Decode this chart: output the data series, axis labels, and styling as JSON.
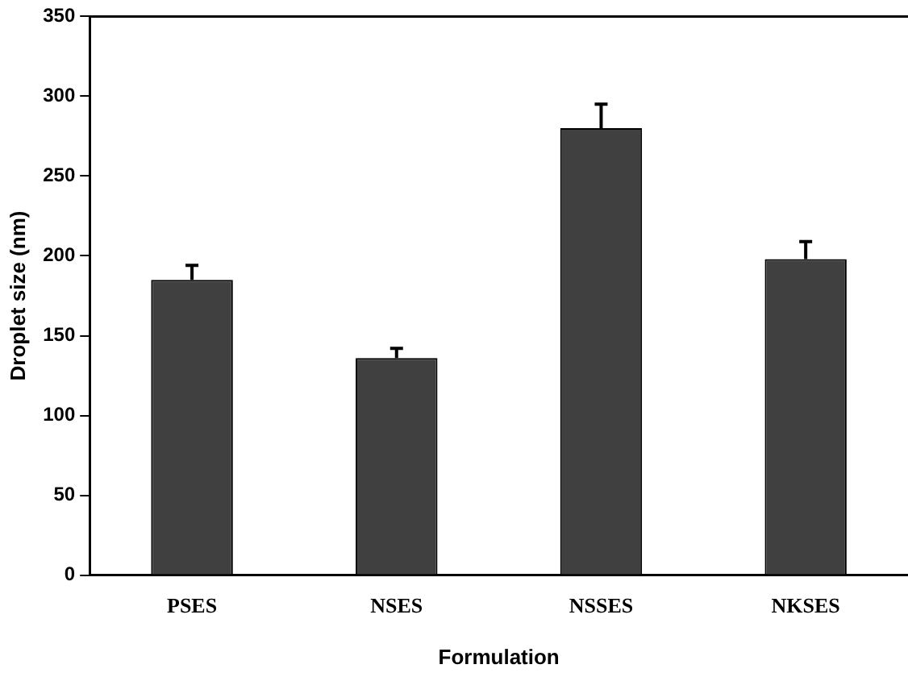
{
  "chart_data": {
    "type": "bar",
    "xlabel": "Formulation",
    "ylabel": "Droplet size (nm)",
    "categories": [
      "PSES",
      "NSES",
      "NSSES",
      "NKSES"
    ],
    "values": [
      185,
      136,
      280,
      198
    ],
    "errors": [
      9,
      6,
      15,
      11
    ],
    "color": "#404040",
    "ylim": [
      0,
      350
    ],
    "yticks": [
      0,
      50,
      100,
      150,
      200,
      250,
      300,
      350
    ],
    "grid": false
  }
}
